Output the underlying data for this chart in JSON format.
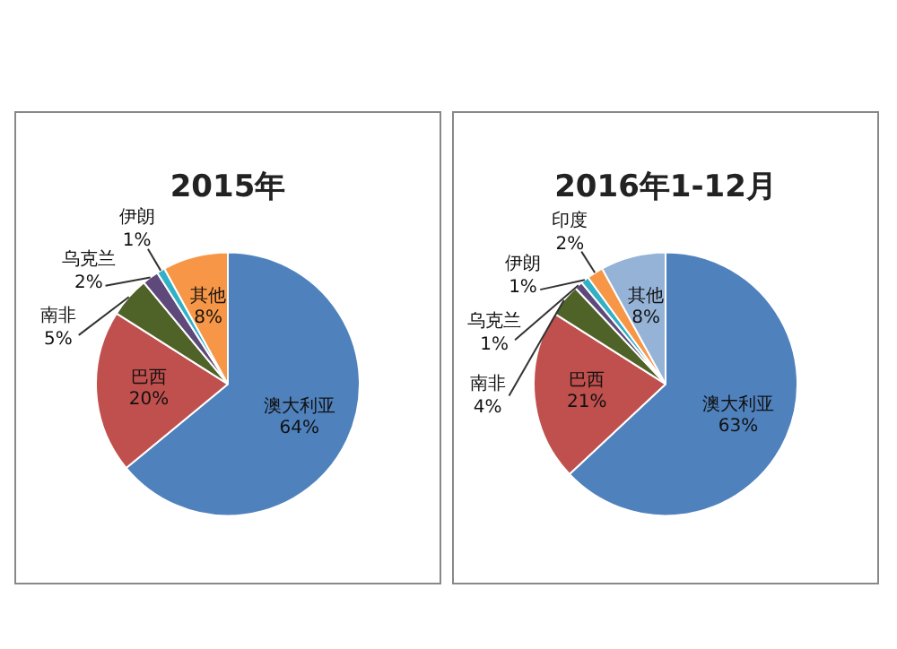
{
  "chart_data": [
    {
      "type": "pie",
      "title": "2015年",
      "categories": [
        "澳大利亚",
        "巴西",
        "南非",
        "乌克兰",
        "伊朗",
        "其他"
      ],
      "values": [
        64,
        20,
        5,
        2,
        1,
        8
      ],
      "colors": [
        "#4f81bd",
        "#c0504d",
        "#4f6228",
        "#5f497a",
        "#31b0c6",
        "#f79646"
      ],
      "value_labels": [
        "64%",
        "20%",
        "5%",
        "2%",
        "1%",
        "8%"
      ],
      "legend": false
    },
    {
      "type": "pie",
      "title": "2016年1-12月",
      "categories": [
        "澳大利亚",
        "巴西",
        "南非",
        "乌克兰",
        "伊朗",
        "印度",
        "其他"
      ],
      "values": [
        63,
        21,
        4,
        1,
        1,
        2,
        8
      ],
      "colors": [
        "#4f81bd",
        "#c0504d",
        "#4f6228",
        "#5f497a",
        "#31b0c6",
        "#f79646",
        "#95b3d7"
      ],
      "value_labels": [
        "63%",
        "21%",
        "4%",
        "1%",
        "1%",
        "2%",
        "8%"
      ],
      "legend": false
    }
  ]
}
